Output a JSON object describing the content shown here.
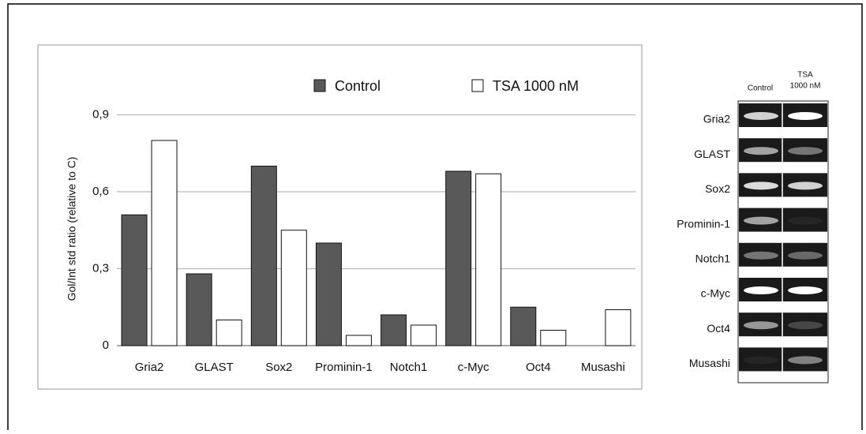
{
  "chart_data": {
    "type": "bar",
    "y_label": "Gol/Int std ratio (relative to C)",
    "categories": [
      "Gria2",
      "GLAST",
      "Sox2",
      "Prominin-1",
      "Notch1",
      "c-Myc",
      "Oct4",
      "Musashi"
    ],
    "series": [
      {
        "name": "Control",
        "color": "#595959",
        "values": [
          0.51,
          0.28,
          0.7,
          0.4,
          0.12,
          0.68,
          0.15,
          0
        ]
      },
      {
        "name": "TSA 1000 nM",
        "color": "#ffffff",
        "values": [
          0.8,
          0.1,
          0.45,
          0.04,
          0.08,
          0.67,
          0.06,
          0.14
        ]
      }
    ],
    "ylim": [
      0,
      1.0
    ],
    "yticks": [
      0,
      {
        "value": 0.3,
        "label": "0,3"
      },
      {
        "value": 0.6,
        "label": "0,6"
      },
      {
        "value": 0.9,
        "label": "0,9"
      }
    ],
    "grid": true,
    "legend": "top"
  },
  "gel": {
    "lanes": [
      "Control",
      "TSA",
      "1000 nM"
    ],
    "rows": [
      "Gria2",
      "GLAST",
      "Sox2",
      "Prominin-1",
      "Notch1",
      "c-Myc",
      "Oct4",
      "Musashi"
    ]
  }
}
